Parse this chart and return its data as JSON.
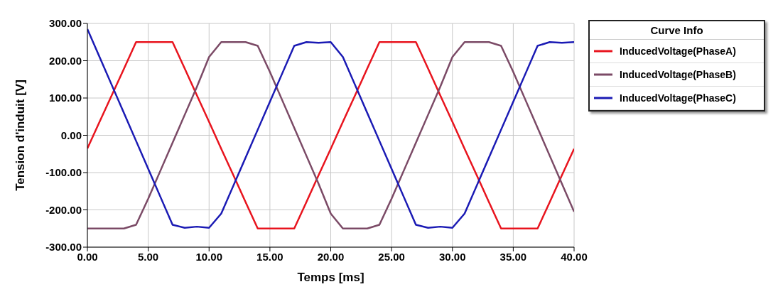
{
  "chart_data": {
    "type": "line",
    "xlabel": "Temps [ms]",
    "ylabel": "Tension d'induit [V]",
    "legend_title": "Curve Info",
    "legend": "top right",
    "grid": true,
    "marker": "none",
    "line_style": "solid",
    "x": [
      0,
      1,
      2,
      3,
      4,
      5,
      6,
      7,
      8,
      9,
      10,
      11,
      12,
      13,
      14,
      15,
      16,
      17,
      18,
      19,
      20,
      21,
      22,
      23,
      24,
      25,
      26,
      27,
      28,
      29,
      30,
      31,
      32,
      33,
      34,
      35,
      36,
      37,
      38,
      39,
      40
    ],
    "xlim": [
      0,
      40
    ],
    "ylim": [
      -300,
      300
    ],
    "xticks": [
      {
        "value": 0,
        "label": "0.00"
      },
      {
        "value": 5,
        "label": "5.00"
      },
      {
        "value": 10,
        "label": "10.00"
      },
      {
        "value": 15,
        "label": "15.00"
      },
      {
        "value": 20,
        "label": "20.00"
      },
      {
        "value": 25,
        "label": "25.00"
      },
      {
        "value": 30,
        "label": "30.00"
      },
      {
        "value": 35,
        "label": "35.00"
      },
      {
        "value": 40,
        "label": "40.00"
      }
    ],
    "yticks": [
      {
        "value": -300,
        "label": "-300.00"
      },
      {
        "value": -200,
        "label": "-200.00"
      },
      {
        "value": -100,
        "label": "-100.00"
      },
      {
        "value": 0,
        "label": "0.00"
      },
      {
        "value": 100,
        "label": "100.00"
      },
      {
        "value": 200,
        "label": "200.00"
      },
      {
        "value": 300,
        "label": "300.00"
      }
    ],
    "series": [
      {
        "name": "InducedVoltage(PhaseA)",
        "color": "#e8141e",
        "values": [
          -35,
          36,
          107,
          178,
          250,
          250,
          250,
          250,
          179,
          107,
          36,
          -36,
          -107,
          -179,
          -250,
          -250,
          -250,
          -250,
          -179,
          -107,
          -36,
          36,
          107,
          179,
          250,
          250,
          250,
          250,
          179,
          107,
          36,
          -36,
          -107,
          -179,
          -250,
          -250,
          -250,
          -250,
          -179,
          -107,
          -36
        ]
      },
      {
        "name": "InducedVoltage(PhaseB)",
        "color": "#7b4a66",
        "values": [
          -250,
          -250,
          -250,
          -250,
          -240,
          -170,
          -95,
          -20,
          55,
          130,
          210,
          250,
          250,
          250,
          240,
          170,
          95,
          20,
          -55,
          -130,
          -210,
          -250,
          -250,
          -250,
          -240,
          -170,
          -95,
          -20,
          55,
          130,
          210,
          250,
          250,
          250,
          240,
          170,
          95,
          20,
          -55,
          -130,
          -205
        ]
      },
      {
        "name": "InducedVoltage(PhaseC)",
        "color": "#1a1ab4",
        "values": [
          285,
          210,
          135,
          60,
          -15,
          -90,
          -165,
          -240,
          -248,
          -245,
          -248,
          -210,
          -135,
          -60,
          15,
          90,
          165,
          240,
          250,
          248,
          250,
          210,
          135,
          60,
          -15,
          -90,
          -165,
          -240,
          -248,
          -245,
          -248,
          -210,
          -135,
          -60,
          15,
          90,
          165,
          240,
          250,
          248,
          250
        ]
      }
    ]
  }
}
